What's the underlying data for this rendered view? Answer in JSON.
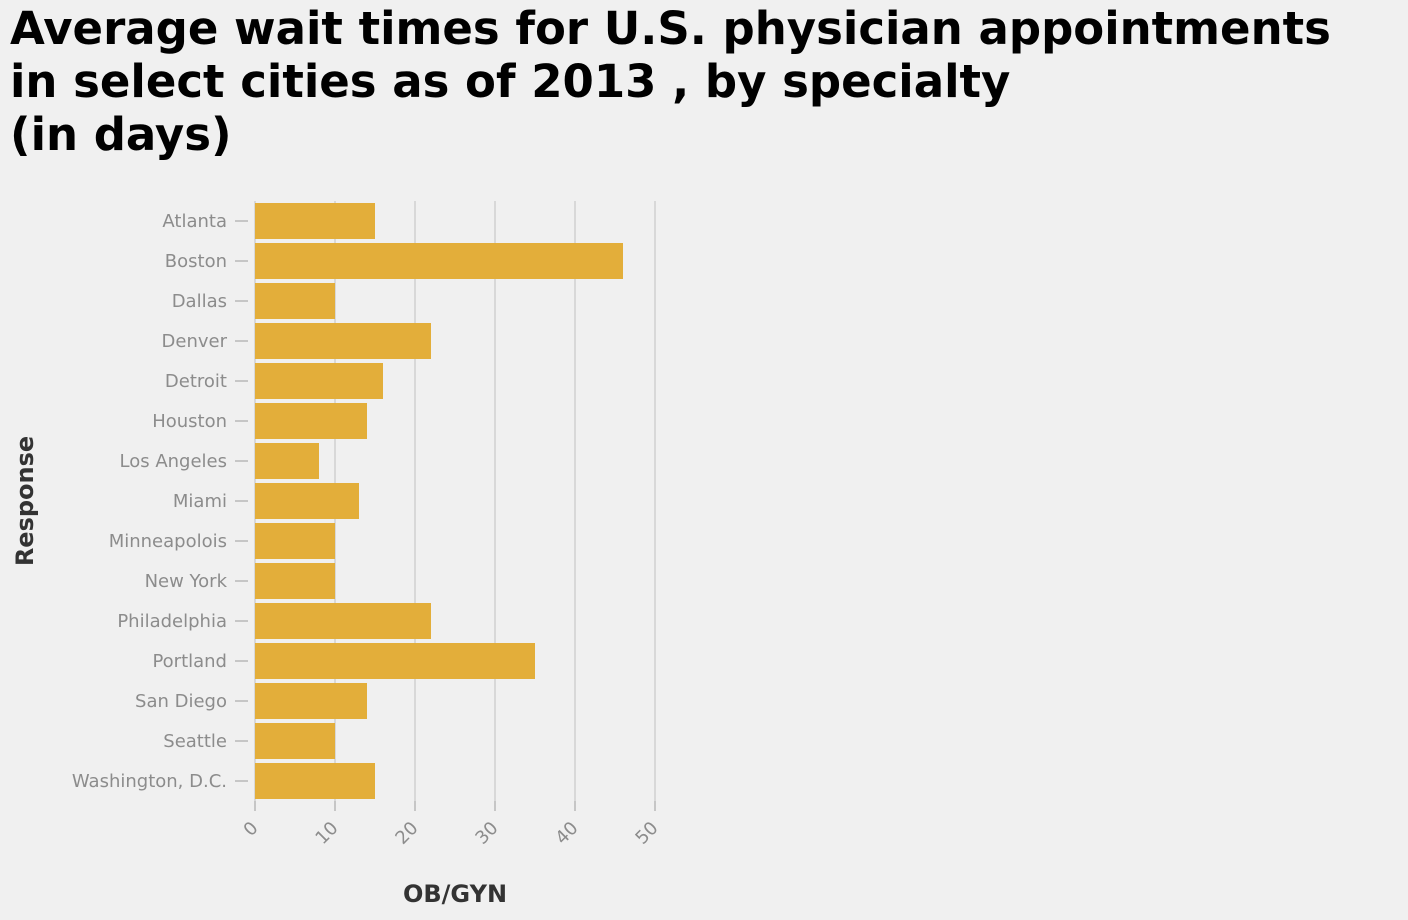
{
  "chart_data": {
    "type": "bar",
    "orientation": "horizontal",
    "title_lines": [
      "Average wait times for U.S. physician appointments",
      "in select cities as of 2013 , by specialty",
      "(in days)"
    ],
    "xlabel": "OB/GYN",
    "ylabel": "Response",
    "xlim": [
      0,
      50
    ],
    "xticks": [
      "0",
      "10",
      "20",
      "30",
      "40",
      "50"
    ],
    "grid": "vertical",
    "bar_color": "#e3ae3a",
    "categories": [
      "Atlanta",
      "Boston",
      "Dallas",
      "Denver",
      "Detroit",
      "Houston",
      "Los Angeles",
      "Miami",
      "Minneapolois",
      "New York",
      "Philadelphia",
      "Portland",
      "San Diego",
      "Seattle",
      "Washington, D.C."
    ],
    "values": [
      15,
      46,
      10,
      22,
      16,
      14,
      8,
      13,
      10,
      10,
      22,
      35,
      14,
      10,
      15
    ]
  }
}
